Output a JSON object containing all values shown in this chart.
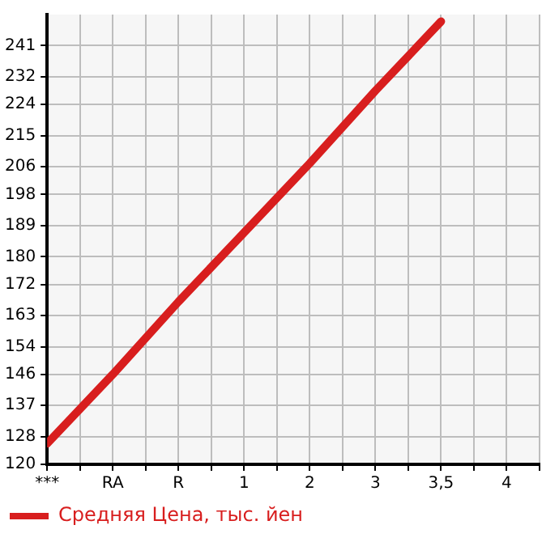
{
  "chart_data": {
    "type": "line",
    "categories": [
      "***",
      "RA",
      "R",
      "1",
      "2",
      "3",
      "3,5",
      "4"
    ],
    "series": [
      {
        "name": "Средняя Цена, тыс. йен",
        "color": "#d81e1e",
        "values": [
          126,
          146,
          167,
          187,
          207,
          228,
          248,
          null
        ]
      }
    ],
    "ylim": [
      120,
      250
    ],
    "yticks": [
      120,
      128,
      137,
      146,
      154,
      163,
      172,
      180,
      189,
      198,
      206,
      215,
      224,
      232,
      241
    ],
    "grid": true,
    "legend": "bottom left",
    "marker": "none",
    "line_style": "solid"
  }
}
